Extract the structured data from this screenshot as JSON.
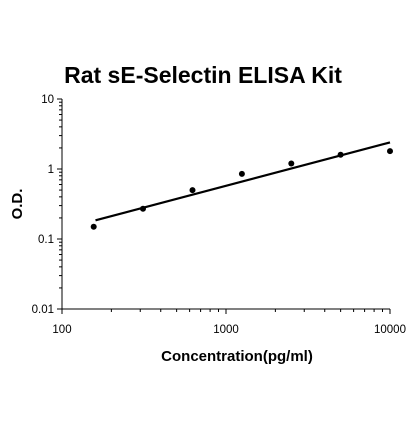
{
  "chart_data": {
    "type": "scatter",
    "title": "Rat sE-Selectin ELISA Kit",
    "xlabel": "Concentration(pg/ml)",
    "ylabel": "O.D.",
    "x_scale": "log",
    "y_scale": "log",
    "xlim": [
      100,
      10000
    ],
    "ylim": [
      0.01,
      10
    ],
    "x_ticks": [
      "100",
      "1000",
      "10000"
    ],
    "y_ticks": [
      "0.01",
      "0.1",
      "1",
      "10"
    ],
    "grid": false,
    "legend": "none",
    "series": [
      {
        "kind": "points",
        "x": [
          156,
          312,
          625,
          1250,
          2500,
          5000,
          10000
        ],
        "y": [
          0.15,
          0.27,
          0.5,
          0.85,
          1.2,
          1.6,
          1.8
        ]
      },
      {
        "kind": "fit-line",
        "x": [
          160,
          10000
        ],
        "y": [
          0.185,
          2.4
        ]
      }
    ],
    "colors": {
      "points": "#000000",
      "line": "#000000",
      "axes": "#000000"
    }
  }
}
